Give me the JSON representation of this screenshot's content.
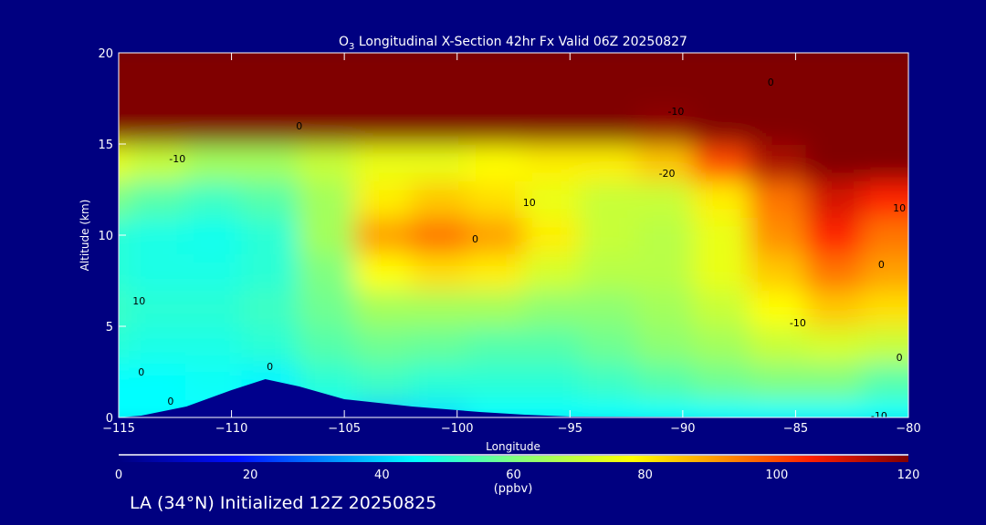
{
  "chart_data": {
    "type": "heatmap",
    "title_prefix": "O",
    "title_sub": "3",
    "title_rest": " Longitudinal X-Section 42hr  Fx Valid 06Z 20250827",
    "xlabel": "Longitude",
    "ylabel": "Altitude (km)",
    "xlim": [
      -115,
      -80
    ],
    "ylim": [
      0,
      20
    ],
    "xticks": [
      -115,
      -110,
      -105,
      -100,
      -95,
      -90,
      -85,
      -80
    ],
    "xtick_labels": [
      "−115",
      "−110",
      "−105",
      "−100",
      "−95",
      "−90",
      "−85",
      "−80"
    ],
    "yticks": [
      0,
      5,
      10,
      15,
      20
    ],
    "ytick_labels": [
      "0",
      "5",
      "10",
      "15",
      "20"
    ],
    "x": [
      -115,
      -112.5,
      -110,
      -107.5,
      -105,
      -102.5,
      -100,
      -97.5,
      -95,
      -92.5,
      -90,
      -87.5,
      -85,
      -82.5,
      -80
    ],
    "y": [
      0,
      2,
      4,
      6,
      8,
      10,
      12,
      14,
      16,
      18,
      20
    ],
    "z": [
      [
        45,
        45,
        45,
        45,
        45,
        40,
        42,
        45,
        45,
        45,
        45,
        45,
        45,
        45,
        45
      ],
      [
        45,
        45,
        46,
        44,
        50,
        52,
        50,
        50,
        50,
        52,
        55,
        58,
        60,
        60,
        55
      ],
      [
        50,
        48,
        48,
        50,
        55,
        58,
        57,
        55,
        55,
        58,
        62,
        65,
        70,
        72,
        70
      ],
      [
        52,
        50,
        50,
        52,
        58,
        65,
        65,
        65,
        62,
        62,
        65,
        70,
        78,
        85,
        82
      ],
      [
        50,
        48,
        48,
        50,
        60,
        78,
        82,
        80,
        72,
        68,
        68,
        75,
        85,
        95,
        90
      ],
      [
        50,
        48,
        47,
        50,
        65,
        90,
        95,
        90,
        80,
        70,
        68,
        75,
        92,
        105,
        95
      ],
      [
        60,
        55,
        52,
        55,
        65,
        80,
        85,
        82,
        75,
        70,
        70,
        80,
        95,
        110,
        105
      ],
      [
        75,
        70,
        65,
        65,
        70,
        75,
        75,
        78,
        80,
        80,
        85,
        100,
        115,
        120,
        120
      ],
      [
        120,
        120,
        120,
        120,
        120,
        120,
        120,
        120,
        120,
        120,
        118,
        120,
        120,
        120,
        120
      ],
      [
        125,
        125,
        125,
        125,
        125,
        125,
        125,
        125,
        125,
        125,
        125,
        125,
        125,
        125,
        125
      ],
      [
        125,
        125,
        125,
        125,
        125,
        125,
        125,
        125,
        125,
        125,
        125,
        125,
        125,
        125,
        125
      ]
    ],
    "terrain": [
      [
        -115,
        0
      ],
      [
        -114,
        0.1
      ],
      [
        -112,
        0.6
      ],
      [
        -110,
        1.5
      ],
      [
        -108.5,
        2.1
      ],
      [
        -107,
        1.7
      ],
      [
        -105,
        1.0
      ],
      [
        -102,
        0.6
      ],
      [
        -99,
        0.3
      ],
      [
        -97,
        0.15
      ],
      [
        -95,
        0.05
      ],
      [
        -80,
        0
      ]
    ],
    "contour_labels": [
      {
        "lon": -107,
        "alt": 16.0,
        "text": "0"
      },
      {
        "lon": -112.4,
        "alt": 14.2,
        "text": "-10"
      },
      {
        "lon": -90.3,
        "alt": 16.8,
        "text": "-10"
      },
      {
        "lon": -86.1,
        "alt": 18.4,
        "text": "0"
      },
      {
        "lon": -90.7,
        "alt": 13.4,
        "text": "-20"
      },
      {
        "lon": -96.8,
        "alt": 11.8,
        "text": "10"
      },
      {
        "lon": -99.2,
        "alt": 9.8,
        "text": "0"
      },
      {
        "lon": -114.1,
        "alt": 6.4,
        "text": "10"
      },
      {
        "lon": -84.9,
        "alt": 5.2,
        "text": "-10"
      },
      {
        "lon": -114.0,
        "alt": 2.5,
        "text": "0"
      },
      {
        "lon": -112.7,
        "alt": 0.9,
        "text": "0"
      },
      {
        "lon": -108.3,
        "alt": 2.8,
        "text": "0"
      },
      {
        "lon": -81.2,
        "alt": 8.4,
        "text": "0"
      },
      {
        "lon": -80.4,
        "alt": 11.5,
        "text": "10"
      },
      {
        "lon": -80.4,
        "alt": 3.3,
        "text": "0"
      },
      {
        "lon": -81.3,
        "alt": 0.1,
        "text": "-10"
      }
    ],
    "colorbar": {
      "range": [
        0,
        120
      ],
      "ticks": [
        "0",
        "20",
        "40",
        "60",
        "80",
        "100",
        "120"
      ],
      "units": "(ppbv)"
    }
  },
  "subtitle": "LA (34°N) Initialized 12Z 20250825",
  "colors": {
    "background": "#000080",
    "terrain": "#00008c"
  }
}
